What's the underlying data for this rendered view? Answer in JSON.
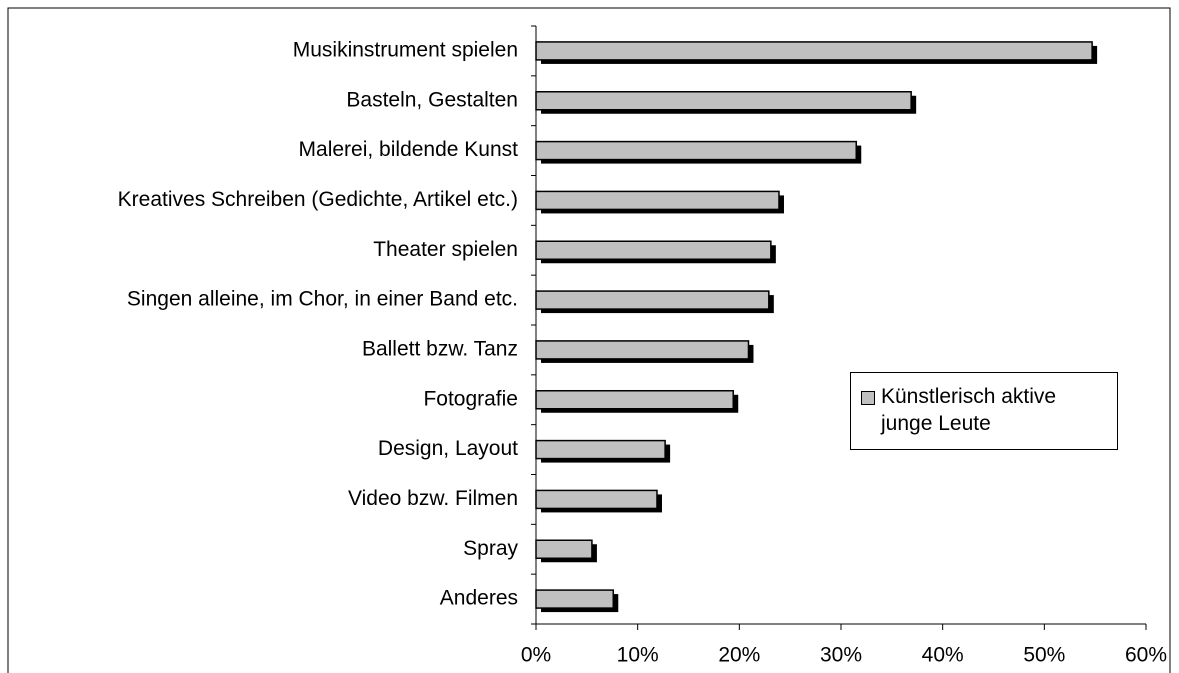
{
  "chart_data": {
    "type": "bar",
    "orientation": "horizontal",
    "categories": [
      "Musikinstrument spielen",
      "Basteln, Gestalten",
      "Malerei, bildende Kunst",
      "Kreatives Schreiben (Gedichte, Artikel etc.)",
      "Theater spielen",
      "Singen alleine, im Chor, in einer Band etc.",
      "Ballett bzw. Tanz",
      "Fotografie",
      "Design, Layout",
      "Video bzw. Filmen",
      "Spray",
      "Anderes"
    ],
    "series": [
      {
        "name": "Künstlerisch aktive junge Leute",
        "color": "#c0c0c0",
        "values": [
          54.7,
          36.9,
          31.5,
          23.9,
          23.1,
          22.9,
          20.9,
          19.4,
          12.7,
          11.9,
          5.5,
          7.6
        ]
      }
    ],
    "xlim": [
      0,
      60
    ],
    "xticks": [
      {
        "value": 0,
        "label": "0%"
      },
      {
        "value": 10,
        "label": "10%"
      },
      {
        "value": 20,
        "label": "20%"
      },
      {
        "value": 30,
        "label": "30%"
      },
      {
        "value": 40,
        "label": "40%"
      },
      {
        "value": 50,
        "label": "50%"
      },
      {
        "value": 60,
        "label": "60%"
      }
    ],
    "legend": "right",
    "shadow": true
  }
}
